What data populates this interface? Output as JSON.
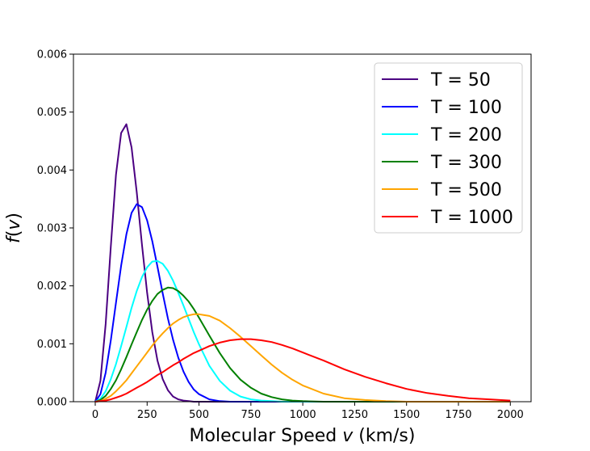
{
  "chart_data": {
    "type": "line",
    "title": "",
    "xlabel_prefix": "Molecular Speed ",
    "xlabel_var": "v",
    "xlabel_suffix": " (km/s)",
    "ylabel_func": "f",
    "ylabel_open": "(",
    "ylabel_var": "v",
    "ylabel_close": ")",
    "xlim": [
      -105,
      2100
    ],
    "ylim": [
      0,
      0.006
    ],
    "x_ticks": [
      0,
      250,
      500,
      750,
      1000,
      1250,
      1500,
      1750,
      2000
    ],
    "y_ticks": [
      0.0,
      0.001,
      0.002,
      0.003,
      0.004,
      0.005,
      0.006
    ],
    "x_tick_labels": [
      "0",
      "250",
      "500",
      "750",
      "1000",
      "1250",
      "1500",
      "1750",
      "2000"
    ],
    "y_tick_labels": [
      "0.000",
      "0.001",
      "0.002",
      "0.003",
      "0.004",
      "0.005",
      "0.006"
    ],
    "grid": false,
    "legend_position": "top-right",
    "x": [
      0,
      25,
      50,
      75,
      100,
      125,
      150,
      175,
      200,
      225,
      250,
      275,
      300,
      325,
      350,
      375,
      400,
      425,
      450,
      475,
      500,
      550,
      600,
      650,
      700,
      750,
      800,
      850,
      900,
      950,
      1000,
      1100,
      1200,
      1300,
      1400,
      1500,
      1600,
      1700,
      1800,
      1900,
      2000
    ],
    "series": [
      {
        "name": "T = 50",
        "color": "#4b0082",
        "values": [
          0.0,
          0.00036,
          0.00134,
          0.00268,
          0.00392,
          0.00464,
          0.00479,
          0.00439,
          0.00362,
          0.00271,
          0.00188,
          0.0012,
          0.00071,
          0.00039,
          0.0002,
          9e-05,
          4e-05,
          2e-05,
          1e-05,
          0.0,
          0.0,
          0.0,
          0.0,
          0.0,
          0.0,
          0.0,
          0.0,
          0.0,
          0.0,
          0.0,
          0.0,
          0.0,
          0.0,
          0.0,
          0.0,
          0.0,
          0.0,
          0.0,
          0.0,
          0.0,
          0.0
        ]
      },
      {
        "name": "T = 100",
        "color": "#0000ff",
        "values": [
          0.0,
          0.00013,
          0.0005,
          0.00106,
          0.00171,
          0.00235,
          0.00289,
          0.00326,
          0.00341,
          0.00336,
          0.00313,
          0.00277,
          0.00233,
          0.00187,
          0.00144,
          0.00107,
          0.00076,
          0.00052,
          0.00034,
          0.00021,
          0.00013,
          4e-05,
          1e-05,
          0.0,
          0.0,
          0.0,
          0.0,
          0.0,
          0.0,
          0.0,
          0.0,
          0.0,
          0.0,
          0.0,
          0.0,
          0.0,
          0.0,
          0.0,
          0.0,
          0.0,
          0.0
        ]
      },
      {
        "name": "T = 200",
        "color": "#00ffff",
        "values": [
          0.0,
          5e-05,
          0.00018,
          0.00039,
          0.00065,
          0.00096,
          0.00129,
          0.00162,
          0.00191,
          0.00215,
          0.00232,
          0.00242,
          0.00243,
          0.00238,
          0.00226,
          0.00209,
          0.00188,
          0.00166,
          0.00143,
          0.0012,
          0.00099,
          0.00062,
          0.00036,
          0.00019,
          9e-05,
          4e-05,
          2e-05,
          1e-05,
          0.0,
          0.0,
          0.0,
          0.0,
          0.0,
          0.0,
          0.0,
          0.0,
          0.0,
          0.0,
          0.0,
          0.0,
          0.0
        ]
      },
      {
        "name": "T = 300",
        "color": "#008000",
        "values": [
          0.0,
          3e-05,
          0.0001,
          0.00022,
          0.00037,
          0.00056,
          0.00077,
          0.00099,
          0.0012,
          0.00141,
          0.00159,
          0.00174,
          0.00186,
          0.00193,
          0.00197,
          0.00196,
          0.00191,
          0.00183,
          0.00173,
          0.0016,
          0.00145,
          0.00114,
          0.00084,
          0.00058,
          0.00038,
          0.00024,
          0.00014,
          8e-05,
          4e-05,
          2e-05,
          1e-05,
          0.0,
          0.0,
          0.0,
          0.0,
          0.0,
          0.0,
          0.0,
          0.0,
          0.0,
          0.0
        ]
      },
      {
        "name": "T = 500",
        "color": "#ffa500",
        "values": [
          0.0,
          1e-05,
          5e-05,
          0.0001,
          0.00018,
          0.00027,
          0.00037,
          0.00049,
          0.00061,
          0.00073,
          0.00085,
          0.00097,
          0.00108,
          0.00118,
          0.00127,
          0.00135,
          0.00141,
          0.00146,
          0.00149,
          0.00151,
          0.00151,
          0.00148,
          0.0014,
          0.00127,
          0.00112,
          0.00096,
          0.0008,
          0.00064,
          0.0005,
          0.00038,
          0.00028,
          0.00014,
          6e-05,
          3e-05,
          1e-05,
          0.0,
          0.0,
          0.0,
          0.0,
          0.0,
          0.0
        ]
      },
      {
        "name": "T = 1000",
        "color": "#ff0000",
        "values": [
          0.0,
          1e-05,
          2e-05,
          4e-05,
          7e-05,
          0.0001,
          0.00014,
          0.00019,
          0.00024,
          0.00029,
          0.00034,
          0.0004,
          0.00046,
          0.00051,
          0.00057,
          0.00063,
          0.00068,
          0.00074,
          0.00079,
          0.00084,
          0.00088,
          0.00096,
          0.00102,
          0.00106,
          0.00108,
          0.00108,
          0.00106,
          0.00103,
          0.00098,
          0.00092,
          0.00085,
          0.00071,
          0.00056,
          0.00043,
          0.00032,
          0.00022,
          0.00015,
          0.0001,
          6e-05,
          4e-05,
          2e-05
        ]
      }
    ]
  }
}
